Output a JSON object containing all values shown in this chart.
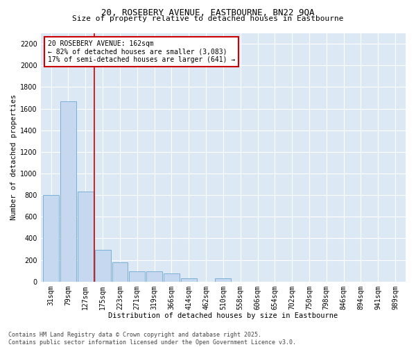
{
  "title_line1": "20, ROSEBERY AVENUE, EASTBOURNE, BN22 9QA",
  "title_line2": "Size of property relative to detached houses in Eastbourne",
  "xlabel": "Distribution of detached houses by size in Eastbourne",
  "ylabel": "Number of detached properties",
  "categories": [
    "31sqm",
    "79sqm",
    "127sqm",
    "175sqm",
    "223sqm",
    "271sqm",
    "319sqm",
    "366sqm",
    "414sqm",
    "462sqm",
    "510sqm",
    "558sqm",
    "606sqm",
    "654sqm",
    "702sqm",
    "750sqm",
    "798sqm",
    "846sqm",
    "894sqm",
    "941sqm",
    "989sqm"
  ],
  "values": [
    800,
    1670,
    830,
    295,
    175,
    95,
    95,
    75,
    30,
    0,
    30,
    0,
    0,
    0,
    0,
    0,
    0,
    0,
    0,
    0,
    0
  ],
  "bar_color": "#c5d8ef",
  "bar_edge_color": "#7aafd4",
  "ylim": [
    0,
    2300
  ],
  "yticks": [
    0,
    200,
    400,
    600,
    800,
    1000,
    1200,
    1400,
    1600,
    1800,
    2000,
    2200
  ],
  "vline_x": 2.5,
  "vline_color": "#cc0000",
  "annotation_text": "20 ROSEBERY AVENUE: 162sqm\n← 82% of detached houses are smaller (3,083)\n17% of semi-detached houses are larger (641) →",
  "annotation_box_color": "#cc0000",
  "annotation_text_color": "#000000",
  "bg_color": "#dce9f5",
  "footer_line1": "Contains HM Land Registry data © Crown copyright and database right 2025.",
  "footer_line2": "Contains public sector information licensed under the Open Government Licence v3.0.",
  "title_fontsize": 9,
  "subtitle_fontsize": 8,
  "axis_label_fontsize": 7.5,
  "tick_fontsize": 7,
  "annotation_fontsize": 7,
  "footer_fontsize": 6
}
